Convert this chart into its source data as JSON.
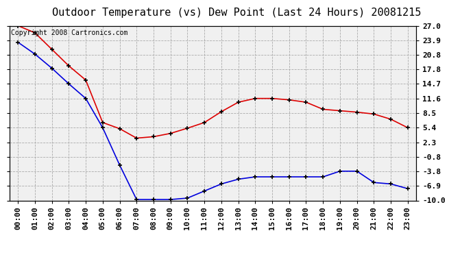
{
  "title": "Outdoor Temperature (vs) Dew Point (Last 24 Hours) 20081215",
  "copyright_text": "Copyright 2008 Cartronics.com",
  "x_labels": [
    "00:00",
    "01:00",
    "02:00",
    "03:00",
    "04:00",
    "05:00",
    "06:00",
    "07:00",
    "08:00",
    "09:00",
    "10:00",
    "11:00",
    "12:00",
    "13:00",
    "14:00",
    "15:00",
    "16:00",
    "17:00",
    "18:00",
    "19:00",
    "20:00",
    "21:00",
    "22:00",
    "23:00"
  ],
  "temp_data": [
    23.5,
    21.0,
    18.0,
    14.7,
    11.6,
    5.4,
    -2.5,
    -9.8,
    -9.8,
    -9.8,
    -9.5,
    -8.0,
    -6.5,
    -5.5,
    -5.0,
    -5.0,
    -5.0,
    -5.0,
    -5.0,
    -3.8,
    -3.8,
    -6.2,
    -6.5,
    -7.5
  ],
  "dew_data": [
    27.0,
    25.5,
    22.0,
    18.5,
    15.5,
    6.5,
    5.2,
    3.2,
    3.5,
    4.2,
    5.3,
    6.5,
    8.8,
    10.8,
    11.6,
    11.6,
    11.3,
    10.8,
    9.3,
    9.0,
    8.7,
    8.3,
    7.2,
    5.4
  ],
  "temp_color": "#0000dd",
  "dew_color": "#dd0000",
  "bg_color": "#ffffff",
  "plot_bg_color": "#f0f0f0",
  "grid_color": "#aaaaaa",
  "ylim": [
    -10.0,
    27.0
  ],
  "yticks": [
    27.0,
    23.9,
    20.8,
    17.8,
    14.7,
    11.6,
    8.5,
    5.4,
    2.3,
    -0.8,
    -3.8,
    -6.9,
    -10.0
  ],
  "title_fontsize": 11,
  "tick_fontsize": 8,
  "copyright_fontsize": 7
}
